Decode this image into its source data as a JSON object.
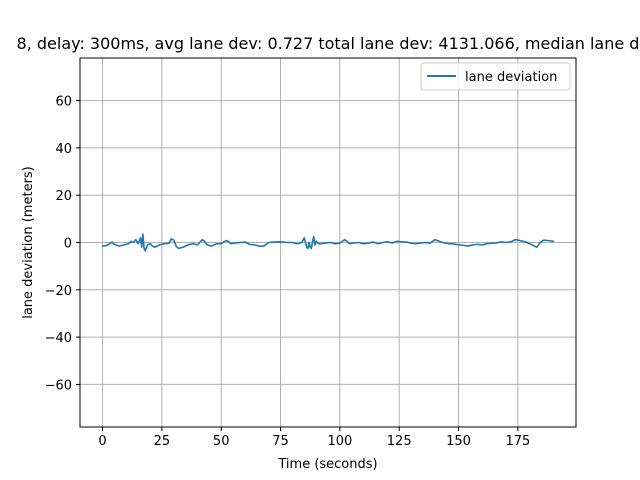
{
  "chart_data": {
    "type": "line",
    "title": "8, delay: 300ms, avg lane dev: 0.727 total lane dev: 4131.066, median lane d",
    "xlabel": "Time (seconds)",
    "ylabel": "lane deviation (meters)",
    "xlim": [
      -9.5,
      199.5
    ],
    "ylim": [
      -78,
      78
    ],
    "xticks": [
      0,
      25,
      50,
      75,
      100,
      125,
      150,
      175
    ],
    "yticks": [
      -60,
      -40,
      -20,
      0,
      20,
      40,
      60
    ],
    "ytick_labels": [
      "−60",
      "−40",
      "−20",
      "0",
      "20",
      "40",
      "60"
    ],
    "grid": true,
    "legend": {
      "position": "top-right",
      "entries": [
        "lane deviation"
      ]
    },
    "colors": {
      "series": "#1f77b4",
      "grid": "#b0b0b0"
    },
    "series": [
      {
        "name": "lane deviation",
        "x": [
          0,
          2,
          4,
          5,
          7,
          9,
          11,
          12,
          13,
          14,
          15,
          16,
          16.5,
          17,
          17.5,
          18,
          18.5,
          19,
          20,
          21,
          22,
          24,
          26,
          28,
          29,
          30,
          31,
          32,
          34,
          36,
          38,
          40,
          42,
          43,
          44,
          46,
          48,
          50,
          52,
          53,
          54,
          56,
          58,
          60,
          62,
          64,
          66,
          68,
          70,
          72,
          74,
          76,
          78,
          80,
          82,
          84,
          85,
          86,
          86.5,
          87,
          87.5,
          88,
          88.5,
          89,
          89.5,
          90,
          91,
          92,
          94,
          96,
          98,
          100,
          102,
          103,
          104,
          106,
          108,
          110,
          112,
          114,
          116,
          118,
          120,
          122,
          124,
          126,
          128,
          130,
          132,
          134,
          136,
          138,
          140,
          142,
          144,
          146,
          148,
          150,
          152,
          154,
          156,
          158,
          160,
          162,
          164,
          166,
          168,
          170,
          172,
          174,
          176,
          178,
          180,
          182,
          183,
          184,
          185,
          186,
          188,
          190
        ],
        "y": [
          -1.5,
          -1.2,
          0.2,
          -0.8,
          -1.5,
          -1.0,
          -0.5,
          0.5,
          0.0,
          1.2,
          -0.5,
          2.0,
          -2.0,
          3.5,
          -2.5,
          -3.5,
          -2.0,
          -1.0,
          -0.5,
          -1.5,
          -2.0,
          -1.0,
          -0.5,
          -0.3,
          1.5,
          1.0,
          -1.5,
          -2.5,
          -2.0,
          -1.0,
          -0.5,
          -1.0,
          1.2,
          0.5,
          -1.0,
          -1.5,
          -0.5,
          -0.5,
          0.8,
          0.5,
          -0.5,
          -0.2,
          0.0,
          0.2,
          -0.8,
          -1.0,
          -1.5,
          -1.5,
          0.0,
          0.2,
          0.3,
          0.2,
          0.0,
          0.0,
          -0.5,
          0.0,
          2.0,
          -2.0,
          -2.5,
          0.0,
          -2.0,
          -2.5,
          0.5,
          2.5,
          -1.0,
          0.5,
          -0.5,
          -0.5,
          -0.2,
          0.0,
          -0.5,
          -0.3,
          1.2,
          0.5,
          -0.5,
          -0.2,
          0.0,
          -0.5,
          -0.3,
          0.2,
          -0.5,
          0.0,
          0.3,
          -0.2,
          0.5,
          0.3,
          0.2,
          -0.3,
          -0.5,
          -0.2,
          0.0,
          -0.3,
          1.2,
          0.5,
          -0.2,
          -0.5,
          -0.6,
          -1.0,
          -1.2,
          -1.5,
          -1.0,
          -0.8,
          -1.0,
          -0.5,
          -0.3,
          -0.2,
          0.3,
          0.0,
          0.3,
          1.2,
          0.8,
          0.3,
          -0.5,
          -1.5,
          -2.0,
          -0.5,
          0.5,
          1.0,
          0.8,
          0.5
        ]
      }
    ]
  }
}
